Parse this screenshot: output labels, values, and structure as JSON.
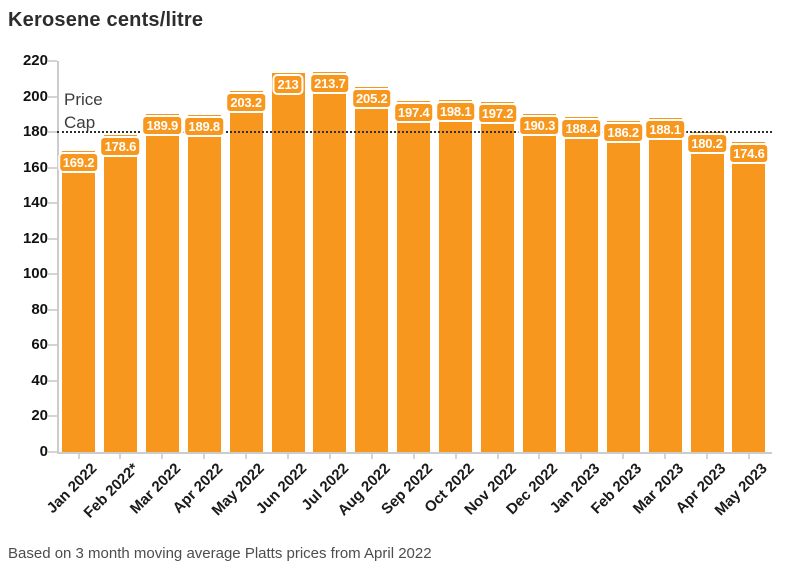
{
  "title": "Kerosene cents/litre",
  "footnote": "Based on 3 month moving average Platts prices from April 2022",
  "price_cap": {
    "label": "Price Cap",
    "value": 180
  },
  "colors": {
    "bar": "#F8971D",
    "value_label_text": "#FFFFFF",
    "value_label_border": "#FFFFFF",
    "axis": "#CCCCCC",
    "tick": "#D5D5D5",
    "cap_line": "#2F2F2F",
    "title_text": "#2D2D2D",
    "axis_text": "#111111",
    "footnote_text": "#4D4D4D"
  },
  "chart_data": {
    "type": "bar",
    "title": "Kerosene cents/litre",
    "categories": [
      "Jan 2022",
      "Feb 2022*",
      "Mar 2022",
      "Apr 2022",
      "May 2022",
      "Jun 2022",
      "Jul 2022",
      "Aug 2022",
      "Sep 2022",
      "Oct 2022",
      "Nov 2022",
      "Dec 2022",
      "Jan 2023",
      "Feb 2023",
      "Mar 2023",
      "Apr 2023",
      "May 2023"
    ],
    "values": [
      169.2,
      178.6,
      189.9,
      189.8,
      203.2,
      213,
      213.7,
      205.2,
      197.4,
      198.1,
      197.2,
      190.3,
      188.4,
      186.2,
      188.1,
      180.2,
      174.6
    ],
    "xlabel": "",
    "ylabel": "",
    "ylim": [
      0,
      220
    ],
    "ytick_step": 20,
    "grid": false,
    "legend": false,
    "annotation": {
      "text": "Price Cap",
      "y": 180,
      "style": "dotted-line"
    }
  }
}
